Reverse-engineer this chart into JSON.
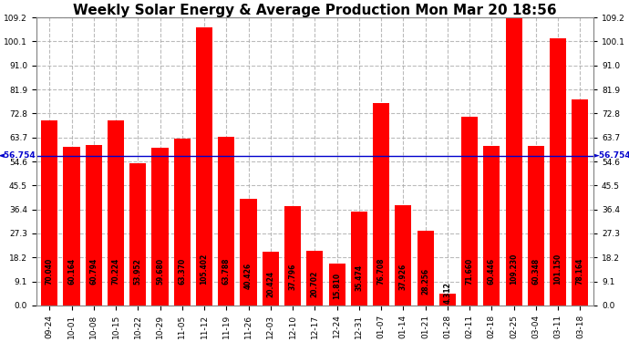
{
  "title": "Weekly Solar Energy & Average Production Mon Mar 20 18:56",
  "categories": [
    "09-24",
    "10-01",
    "10-08",
    "10-15",
    "10-22",
    "10-29",
    "11-05",
    "11-12",
    "11-19",
    "11-26",
    "12-03",
    "12-10",
    "12-17",
    "12-24",
    "12-31",
    "01-07",
    "01-14",
    "01-21",
    "01-28",
    "02-11",
    "02-18",
    "02-25",
    "03-04",
    "03-11",
    "03-18"
  ],
  "values": [
    70.04,
    60.164,
    60.794,
    70.224,
    53.952,
    59.68,
    63.37,
    105.402,
    63.788,
    40.426,
    20.424,
    37.796,
    20.702,
    15.81,
    35.474,
    76.708,
    37.926,
    28.256,
    4.312,
    71.66,
    60.446,
    109.23,
    60.348,
    101.15,
    78.164
  ],
  "average": 56.754,
  "ylim": [
    0,
    109.2
  ],
  "yticks": [
    0.0,
    9.1,
    18.2,
    27.3,
    36.4,
    45.5,
    54.6,
    63.7,
    72.8,
    81.9,
    91.0,
    100.1,
    109.2
  ],
  "bar_color": "#FF0000",
  "avg_line_color": "#0000CC",
  "background_color": "#FFFFFF",
  "plot_bg_color": "#FFFFFF",
  "grid_color": "#AAAAAA",
  "legend_avg_bg": "#0000AA",
  "legend_weekly_bg": "#CC0000",
  "title_fontsize": 11,
  "tick_fontsize": 6.5,
  "value_fontsize": 5.5,
  "copyright_fontsize": 7
}
